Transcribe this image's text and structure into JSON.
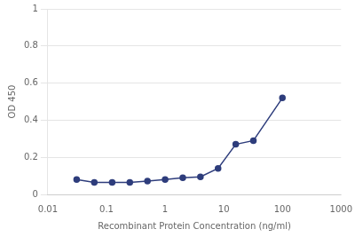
{
  "chart_data": {
    "type": "line",
    "x_label": "Recombinant Protein Concentration (ng/ml)",
    "y_label": "OD 450",
    "x": [
      0.031,
      0.062,
      0.125,
      0.25,
      0.5,
      1.0,
      2.0,
      4.0,
      8.0,
      16.0,
      32.0,
      100.0
    ],
    "values": [
      0.08,
      0.065,
      0.065,
      0.065,
      0.072,
      0.08,
      0.09,
      0.095,
      0.14,
      0.27,
      0.29,
      0.52
    ],
    "color": "#2e3d7c",
    "marker": "circle",
    "log": "x",
    "xlim": [
      0.01,
      1000
    ],
    "xticks": [
      0.01,
      0.1,
      1,
      10,
      100,
      1000
    ],
    "ylim": [
      0,
      1
    ],
    "yticks": [
      0,
      0.2,
      0.4,
      0.6,
      0.8,
      1
    ],
    "grid": "y"
  }
}
